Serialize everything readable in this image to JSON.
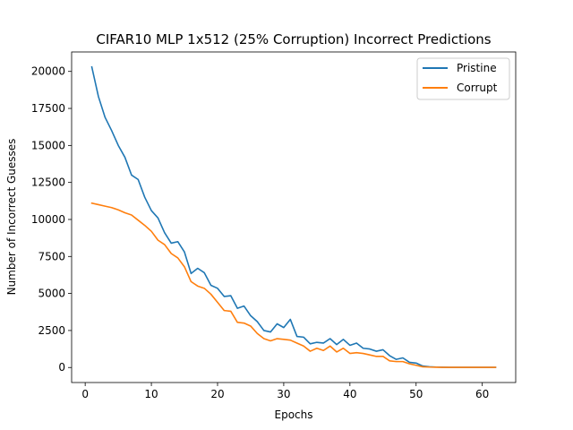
{
  "chart_data": {
    "type": "line",
    "title": "CIFAR10 MLP 1x512 (25% Corruption) Incorrect Predictions",
    "xlabel": "Epochs",
    "ylabel": "Number of Incorrect Guesses",
    "xlim": [
      -2.05,
      65.05
    ],
    "ylim": [
      -1014,
      21314
    ],
    "xticks": [
      0,
      10,
      20,
      30,
      40,
      50,
      60
    ],
    "yticks": [
      0,
      2500,
      5000,
      7500,
      10000,
      12500,
      15000,
      17500,
      20000
    ],
    "xtick_labels": [
      "0",
      "10",
      "20",
      "30",
      "40",
      "50",
      "60"
    ],
    "ytick_labels": [
      "0",
      "2500",
      "5000",
      "7500",
      "10000",
      "12500",
      "15000",
      "17500",
      "20000"
    ],
    "grid": false,
    "legend_position": "top-right",
    "x": [
      1,
      2,
      3,
      4,
      5,
      6,
      7,
      8,
      9,
      10,
      11,
      12,
      13,
      14,
      15,
      16,
      17,
      18,
      19,
      20,
      21,
      22,
      23,
      24,
      25,
      26,
      27,
      28,
      29,
      30,
      31,
      32,
      33,
      34,
      35,
      36,
      37,
      38,
      39,
      40,
      41,
      42,
      43,
      44,
      45,
      46,
      47,
      48,
      49,
      50,
      51,
      52,
      53,
      54,
      55,
      56,
      57,
      58,
      59,
      60,
      61,
      62
    ],
    "series": [
      {
        "name": "Pristine",
        "color": "#1f77b4",
        "values": [
          20300,
          18300,
          16900,
          16000,
          15000,
          14200,
          13000,
          12700,
          11500,
          10600,
          10100,
          9100,
          8400,
          8500,
          7800,
          6350,
          6700,
          6400,
          5550,
          5350,
          4800,
          4850,
          4000,
          4150,
          3500,
          3100,
          2500,
          2400,
          2950,
          2700,
          3250,
          2100,
          2050,
          1600,
          1700,
          1650,
          1950,
          1550,
          1900,
          1500,
          1650,
          1300,
          1250,
          1100,
          1200,
          800,
          550,
          650,
          350,
          300,
          100,
          50,
          30,
          20,
          10,
          10,
          10,
          10,
          10,
          10,
          10,
          10
        ]
      },
      {
        "name": "Corrupt",
        "color": "#ff7f0e",
        "values": [
          11100,
          11000,
          10900,
          10800,
          10650,
          10450,
          10300,
          9950,
          9600,
          9200,
          8600,
          8300,
          7700,
          7400,
          6800,
          5800,
          5500,
          5350,
          4950,
          4400,
          3850,
          3800,
          3050,
          3000,
          2800,
          2300,
          1950,
          1800,
          1950,
          1900,
          1850,
          1650,
          1450,
          1100,
          1300,
          1150,
          1450,
          1050,
          1300,
          950,
          1000,
          950,
          850,
          750,
          750,
          450,
          400,
          400,
          250,
          150,
          50,
          30,
          20,
          10,
          10,
          10,
          10,
          10,
          10,
          10,
          10,
          10
        ]
      }
    ]
  }
}
